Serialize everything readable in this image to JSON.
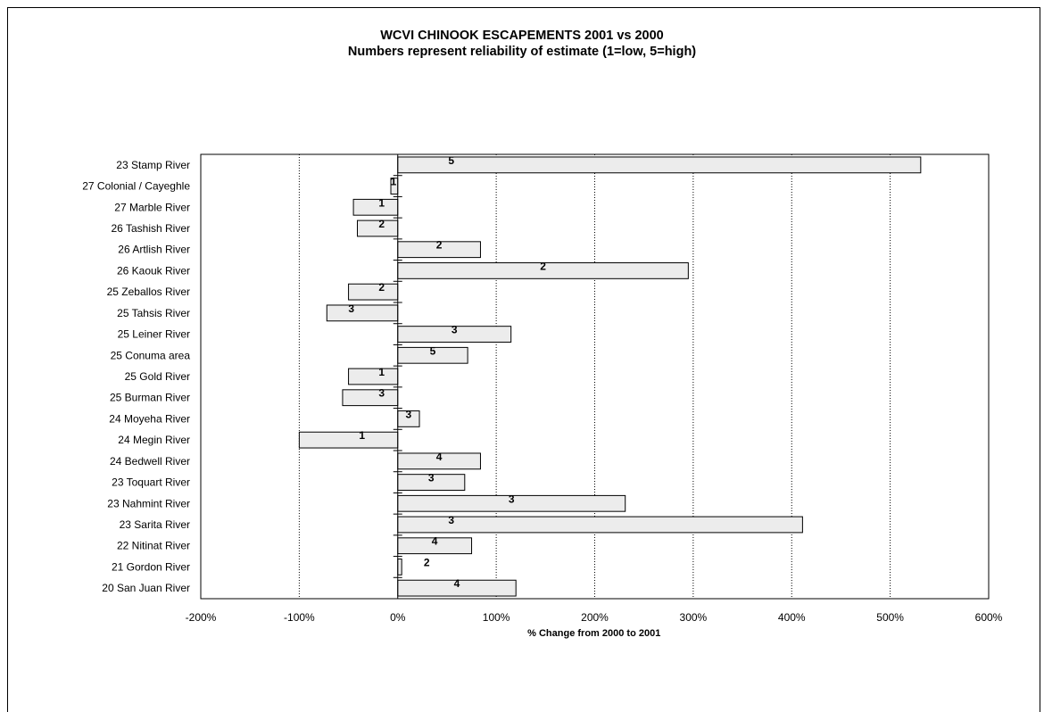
{
  "chart_data": {
    "type": "bar",
    "orientation": "horizontal",
    "title": "WCVI CHINOOK ESCAPEMENTS 2001 vs 2000",
    "subtitle": "Numbers represent reliability of estimate (1=low, 5=high)",
    "xlabel": "% Change from 2000 to 2001",
    "ylabel": "",
    "xlim": [
      -200,
      600
    ],
    "x_ticks": [
      -200,
      -100,
      0,
      100,
      200,
      300,
      400,
      500,
      600
    ],
    "x_tick_labels": [
      "-200%",
      "-100%",
      "0%",
      "100%",
      "200%",
      "300%",
      "400%",
      "500%",
      "600%"
    ],
    "grid": "vertical dotted",
    "bar_color": "#ececec",
    "categories": [
      "23 Stamp River",
      "27 Colonial / Cayeghle",
      "27 Marble River",
      "26 Tashish River",
      "26 Artlish River",
      "26 Kaouk River",
      "25 Zeballos River",
      "25 Tahsis River",
      "25 Leiner River",
      "25 Conuma area",
      "25 Gold River",
      "25 Burman River",
      "24 Moyeha River",
      "24 Megin River",
      "24 Bedwell River",
      "23 Toquart River",
      "23 Nahmint River",
      "23 Sarita River",
      "22 Nitinat River",
      "21 Gordon River",
      "20 San Juan River"
    ],
    "values": [
      531,
      -7,
      -45,
      -41,
      84,
      295,
      -50,
      -72,
      115,
      71,
      -50,
      -56,
      22,
      -100,
      84,
      68,
      231,
      411,
      75,
      4,
      120
    ],
    "reliability": [
      "5",
      "1",
      "1",
      "2",
      "2",
      "2",
      "2",
      "3",
      "3",
      "5",
      "1",
      "3",
      "3",
      "1",
      "4",
      "3",
      "3",
      "3",
      "4",
      "2",
      "4"
    ]
  }
}
